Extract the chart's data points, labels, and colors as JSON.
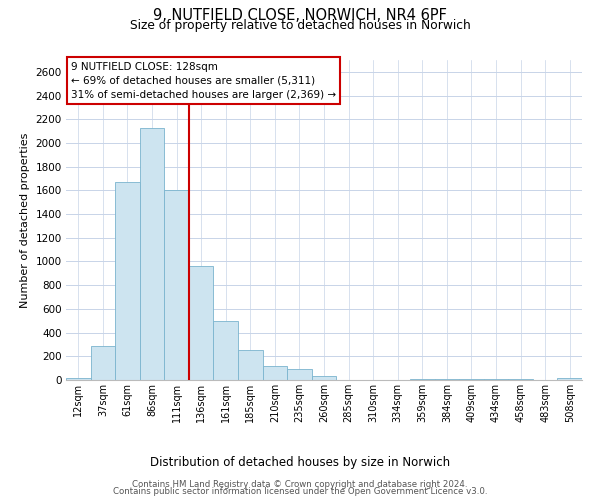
{
  "title": "9, NUTFIELD CLOSE, NORWICH, NR4 6PF",
  "subtitle": "Size of property relative to detached houses in Norwich",
  "xlabel": "Distribution of detached houses by size in Norwich",
  "ylabel": "Number of detached properties",
  "bin_labels": [
    "12sqm",
    "37sqm",
    "61sqm",
    "86sqm",
    "111sqm",
    "136sqm",
    "161sqm",
    "185sqm",
    "210sqm",
    "235sqm",
    "260sqm",
    "285sqm",
    "310sqm",
    "334sqm",
    "359sqm",
    "384sqm",
    "409sqm",
    "434sqm",
    "458sqm",
    "483sqm",
    "508sqm"
  ],
  "bar_values": [
    20,
    290,
    1670,
    2130,
    1600,
    960,
    500,
    250,
    120,
    95,
    30,
    0,
    0,
    0,
    10,
    5,
    5,
    5,
    5,
    0,
    20
  ],
  "bar_color": "#cde4f0",
  "bar_edge_color": "#7ab4ce",
  "vline_x_idx": 4,
  "vline_color": "#cc0000",
  "ylim": [
    0,
    2700
  ],
  "yticks": [
    0,
    200,
    400,
    600,
    800,
    1000,
    1200,
    1400,
    1600,
    1800,
    2000,
    2200,
    2400,
    2600
  ],
  "annotation_title": "9 NUTFIELD CLOSE: 128sqm",
  "annotation_line1": "← 69% of detached houses are smaller (5,311)",
  "annotation_line2": "31% of semi-detached houses are larger (2,369) →",
  "annotation_box_color": "#ffffff",
  "annotation_box_edge": "#cc0000",
  "footer1": "Contains HM Land Registry data © Crown copyright and database right 2024.",
  "footer2": "Contains public sector information licensed under the Open Government Licence v3.0.",
  "background_color": "#ffffff",
  "grid_color": "#c8d4e8"
}
